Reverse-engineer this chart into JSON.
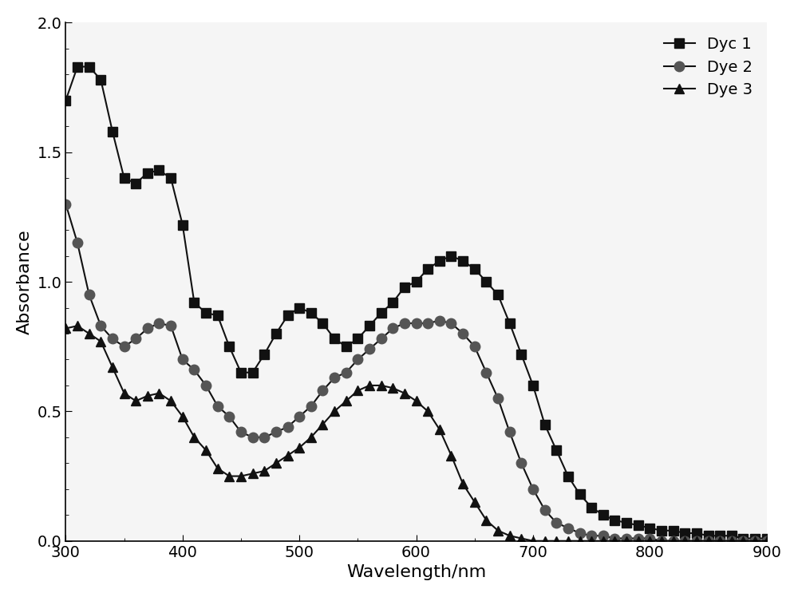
{
  "title": "",
  "xlabel": "Wavelength/nm",
  "ylabel": "Absorbance",
  "xlim": [
    300,
    900
  ],
  "ylim": [
    0.0,
    2.0
  ],
  "xticks": [
    300,
    400,
    500,
    600,
    700,
    800,
    900
  ],
  "yticks": [
    0.0,
    0.5,
    1.0,
    1.5,
    2.0
  ],
  "legend_labels": [
    "Dyc 1",
    "Dye 2",
    "Dye 3"
  ],
  "line_color": "#111111",
  "marker_color_1": "#111111",
  "marker_color_2": "#555555",
  "marker_color_3": "#111111",
  "markers": [
    "s",
    "o",
    "^"
  ],
  "dye1_x": [
    300,
    310,
    320,
    330,
    340,
    350,
    360,
    370,
    380,
    390,
    400,
    410,
    420,
    430,
    440,
    450,
    460,
    470,
    480,
    490,
    500,
    510,
    520,
    530,
    540,
    550,
    560,
    570,
    580,
    590,
    600,
    610,
    620,
    630,
    640,
    650,
    660,
    670,
    680,
    690,
    700,
    710,
    720,
    730,
    740,
    750,
    760,
    770,
    780,
    790,
    800,
    810,
    820,
    830,
    840,
    850,
    860,
    870,
    880,
    890,
    900
  ],
  "dye1_y": [
    1.7,
    1.83,
    1.83,
    1.78,
    1.58,
    1.4,
    1.38,
    1.42,
    1.43,
    1.4,
    1.22,
    0.92,
    0.88,
    0.87,
    0.75,
    0.65,
    0.65,
    0.72,
    0.8,
    0.87,
    0.9,
    0.88,
    0.84,
    0.78,
    0.75,
    0.78,
    0.83,
    0.88,
    0.92,
    0.98,
    1.0,
    1.05,
    1.08,
    1.1,
    1.08,
    1.05,
    1.0,
    0.95,
    0.84,
    0.72,
    0.6,
    0.45,
    0.35,
    0.25,
    0.18,
    0.13,
    0.1,
    0.08,
    0.07,
    0.06,
    0.05,
    0.04,
    0.04,
    0.03,
    0.03,
    0.02,
    0.02,
    0.02,
    0.01,
    0.01,
    0.01
  ],
  "dye2_x": [
    300,
    310,
    320,
    330,
    340,
    350,
    360,
    370,
    380,
    390,
    400,
    410,
    420,
    430,
    440,
    450,
    460,
    470,
    480,
    490,
    500,
    510,
    520,
    530,
    540,
    550,
    560,
    570,
    580,
    590,
    600,
    610,
    620,
    630,
    640,
    650,
    660,
    670,
    680,
    690,
    700,
    710,
    720,
    730,
    740,
    750,
    760,
    770,
    780,
    790,
    800,
    810,
    820,
    830,
    840,
    850,
    860,
    870,
    880,
    890,
    900
  ],
  "dye2_y": [
    1.3,
    1.15,
    0.95,
    0.83,
    0.78,
    0.75,
    0.78,
    0.82,
    0.84,
    0.83,
    0.7,
    0.66,
    0.6,
    0.52,
    0.48,
    0.42,
    0.4,
    0.4,
    0.42,
    0.44,
    0.48,
    0.52,
    0.58,
    0.63,
    0.65,
    0.7,
    0.74,
    0.78,
    0.82,
    0.84,
    0.84,
    0.84,
    0.85,
    0.84,
    0.8,
    0.75,
    0.65,
    0.55,
    0.42,
    0.3,
    0.2,
    0.12,
    0.07,
    0.05,
    0.03,
    0.02,
    0.02,
    0.01,
    0.01,
    0.01,
    0.01,
    0.0,
    0.0,
    0.0,
    0.0,
    0.0,
    0.0,
    0.0,
    0.0,
    0.0,
    0.0
  ],
  "dye3_x": [
    300,
    310,
    320,
    330,
    340,
    350,
    360,
    370,
    380,
    390,
    400,
    410,
    420,
    430,
    440,
    450,
    460,
    470,
    480,
    490,
    500,
    510,
    520,
    530,
    540,
    550,
    560,
    570,
    580,
    590,
    600,
    610,
    620,
    630,
    640,
    650,
    660,
    670,
    680,
    690,
    700,
    710,
    720,
    730,
    740,
    750,
    760,
    770,
    780,
    790,
    800,
    810,
    820,
    830,
    840,
    850,
    860,
    870,
    880,
    890,
    900
  ],
  "dye3_y": [
    0.82,
    0.83,
    0.8,
    0.77,
    0.67,
    0.57,
    0.54,
    0.56,
    0.57,
    0.54,
    0.48,
    0.4,
    0.35,
    0.28,
    0.25,
    0.25,
    0.26,
    0.27,
    0.3,
    0.33,
    0.36,
    0.4,
    0.45,
    0.5,
    0.54,
    0.58,
    0.6,
    0.6,
    0.59,
    0.57,
    0.54,
    0.5,
    0.43,
    0.33,
    0.22,
    0.15,
    0.08,
    0.04,
    0.02,
    0.01,
    0.0,
    0.0,
    0.0,
    0.0,
    0.0,
    0.0,
    0.0,
    0.0,
    0.0,
    0.0,
    0.0,
    0.0,
    0.0,
    0.0,
    0.0,
    0.0,
    0.0,
    0.0,
    0.0,
    0.0,
    0.0
  ],
  "markersize_sq": 8,
  "markersize_circ": 9,
  "markersize_tri": 8,
  "linewidth": 1.5,
  "background_color": "#ffffff",
  "plot_background": "#f5f5f5",
  "legend_fontsize": 14,
  "axis_fontsize": 16,
  "tick_fontsize": 14
}
